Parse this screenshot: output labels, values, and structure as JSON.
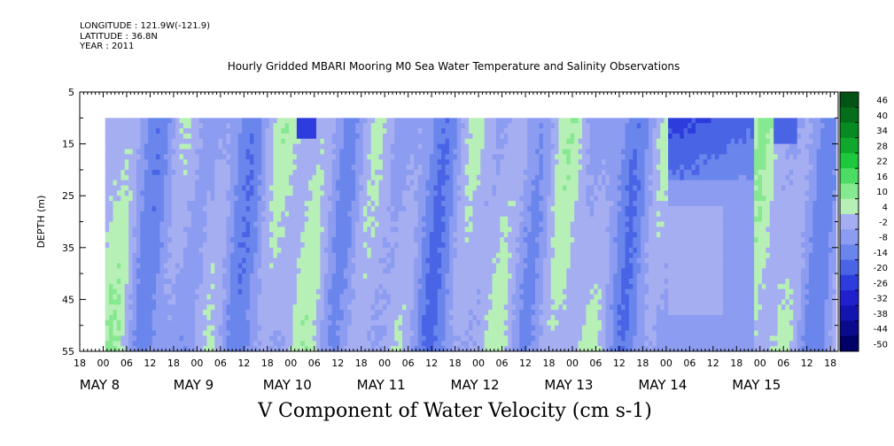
{
  "header": {
    "longitude": "LONGITUDE : 121.9W(-121.9)",
    "latitude": "LATITUDE : 36.8N",
    "year": "YEAR : 2011"
  },
  "chart_data": {
    "type": "heatmap",
    "title": "Hourly Gridded MBARI Mooring M0 Sea Water Temperature and Salinity Observations",
    "xlabel": "V Component of Water Velocity (cm s-1)",
    "ylabel": "DEPTH (m)",
    "ylim": [
      55,
      5
    ],
    "y_ticks": [
      5,
      15,
      25,
      35,
      45,
      55
    ],
    "x_range_hours": [
      "MAY 7 18:00",
      "MAY 15 20:00"
    ],
    "x_hour_ticks": [
      "18",
      "00",
      "06",
      "12",
      "18",
      "00",
      "06",
      "12",
      "18",
      "00",
      "06",
      "12",
      "18",
      "00",
      "06",
      "12",
      "18",
      "00",
      "06",
      "12",
      "18",
      "00",
      "06",
      "12",
      "18",
      "00",
      "06",
      "12",
      "18",
      "00",
      "06",
      "12",
      "18"
    ],
    "day_labels": [
      {
        "label": "MAY  8",
        "day": 8
      },
      {
        "label": "MAY  9",
        "day": 9
      },
      {
        "label": "MAY 10",
        "day": 10
      },
      {
        "label": "MAY 11",
        "day": 11
      },
      {
        "label": "MAY 12",
        "day": 12
      },
      {
        "label": "MAY 13",
        "day": 13
      },
      {
        "label": "MAY 14",
        "day": 14
      },
      {
        "label": "MAY 15",
        "day": 15
      }
    ],
    "colorbar": {
      "levels": [
        -50,
        -44,
        -38,
        -32,
        -26,
        -20,
        -14,
        -8,
        -2,
        4,
        10,
        16,
        22,
        28,
        34,
        40,
        46
      ],
      "tick_labels": [
        "46",
        "40",
        "34",
        "28",
        "22",
        "16",
        "10",
        "4",
        "-2",
        "-8",
        "-14",
        "-20",
        "-26",
        "-32",
        "-38",
        "-44",
        "-50"
      ],
      "colors_low_to_high": [
        "#000066",
        "#0a0a8c",
        "#1414b0",
        "#2020cc",
        "#2d3cdc",
        "#4a64e6",
        "#6a86ec",
        "#8c9cf0",
        "#a6aef2",
        "#b6f0b6",
        "#86e890",
        "#4cdc64",
        "#1ec83c",
        "#10a82c",
        "#088a22",
        "#046e1a",
        "#025414"
      ]
    },
    "depth_range_with_data": [
      10,
      55
    ],
    "data_start": "MAY 8 ~00:30",
    "summary": "V velocity mostly between -14 and +16 cm/s; green (positive) and lavender-blue (negative) vertical bands alternating through time; strongest negative near 10-15 m around MAY 14 06:00 and MAY 10 12:00"
  }
}
